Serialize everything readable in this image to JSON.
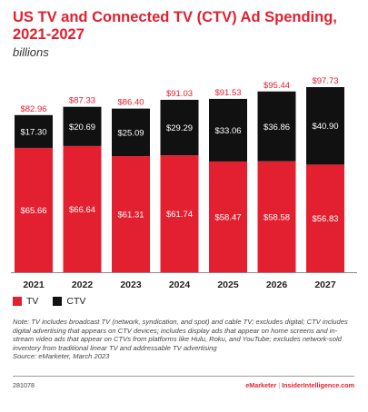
{
  "chart_data": {
    "type": "bar",
    "stacked": true,
    "title": "US TV and Connected TV (CTV) Ad Spending, 2021-2027",
    "subtitle": "billions",
    "categories": [
      "2021",
      "2022",
      "2023",
      "2024",
      "2025",
      "2026",
      "2027"
    ],
    "series": [
      {
        "name": "TV",
        "color": "#e3202f",
        "values": [
          65.66,
          66.64,
          61.31,
          61.74,
          58.47,
          58.58,
          56.83
        ],
        "labels": [
          "$65.66",
          "$66.64",
          "$61.31",
          "$61.74",
          "$58.47",
          "$58.58",
          "$56.83"
        ]
      },
      {
        "name": "CTV",
        "color": "#111111",
        "values": [
          17.3,
          20.69,
          25.09,
          29.29,
          33.06,
          36.86,
          40.9
        ],
        "labels": [
          "$17.30",
          "$20.69",
          "$25.09",
          "$29.29",
          "$33.06",
          "$36.86",
          "$40.90"
        ]
      }
    ],
    "totals": [
      82.96,
      87.33,
      86.4,
      91.03,
      91.53,
      95.44,
      97.73
    ],
    "total_labels": [
      "$82.96",
      "$87.33",
      "$86.40",
      "$91.03",
      "$91.53",
      "$95.44",
      "$97.73"
    ],
    "ylim": [
      0,
      97.73
    ],
    "grid": false,
    "legend": "bottom-left"
  },
  "note": "Note: TV includes broadcast TV (network, syndication, and spot) and cable TV; excludes digital; CTV includes digital advertising that appears on CTV devices; includes display ads that appear on home screens and in-stream video ads that appear on CTVs from platforms like Hulu, Roku, and YouTube; excludes network-sold inventory from traditional linear TV and addressable TV advertising",
  "source": "Source: eMarketer, March 2023",
  "footer": {
    "id": "281078",
    "brand_a": "eMarketer",
    "brand_sep": "|",
    "brand_b": "InsiderIntelligence.com"
  }
}
